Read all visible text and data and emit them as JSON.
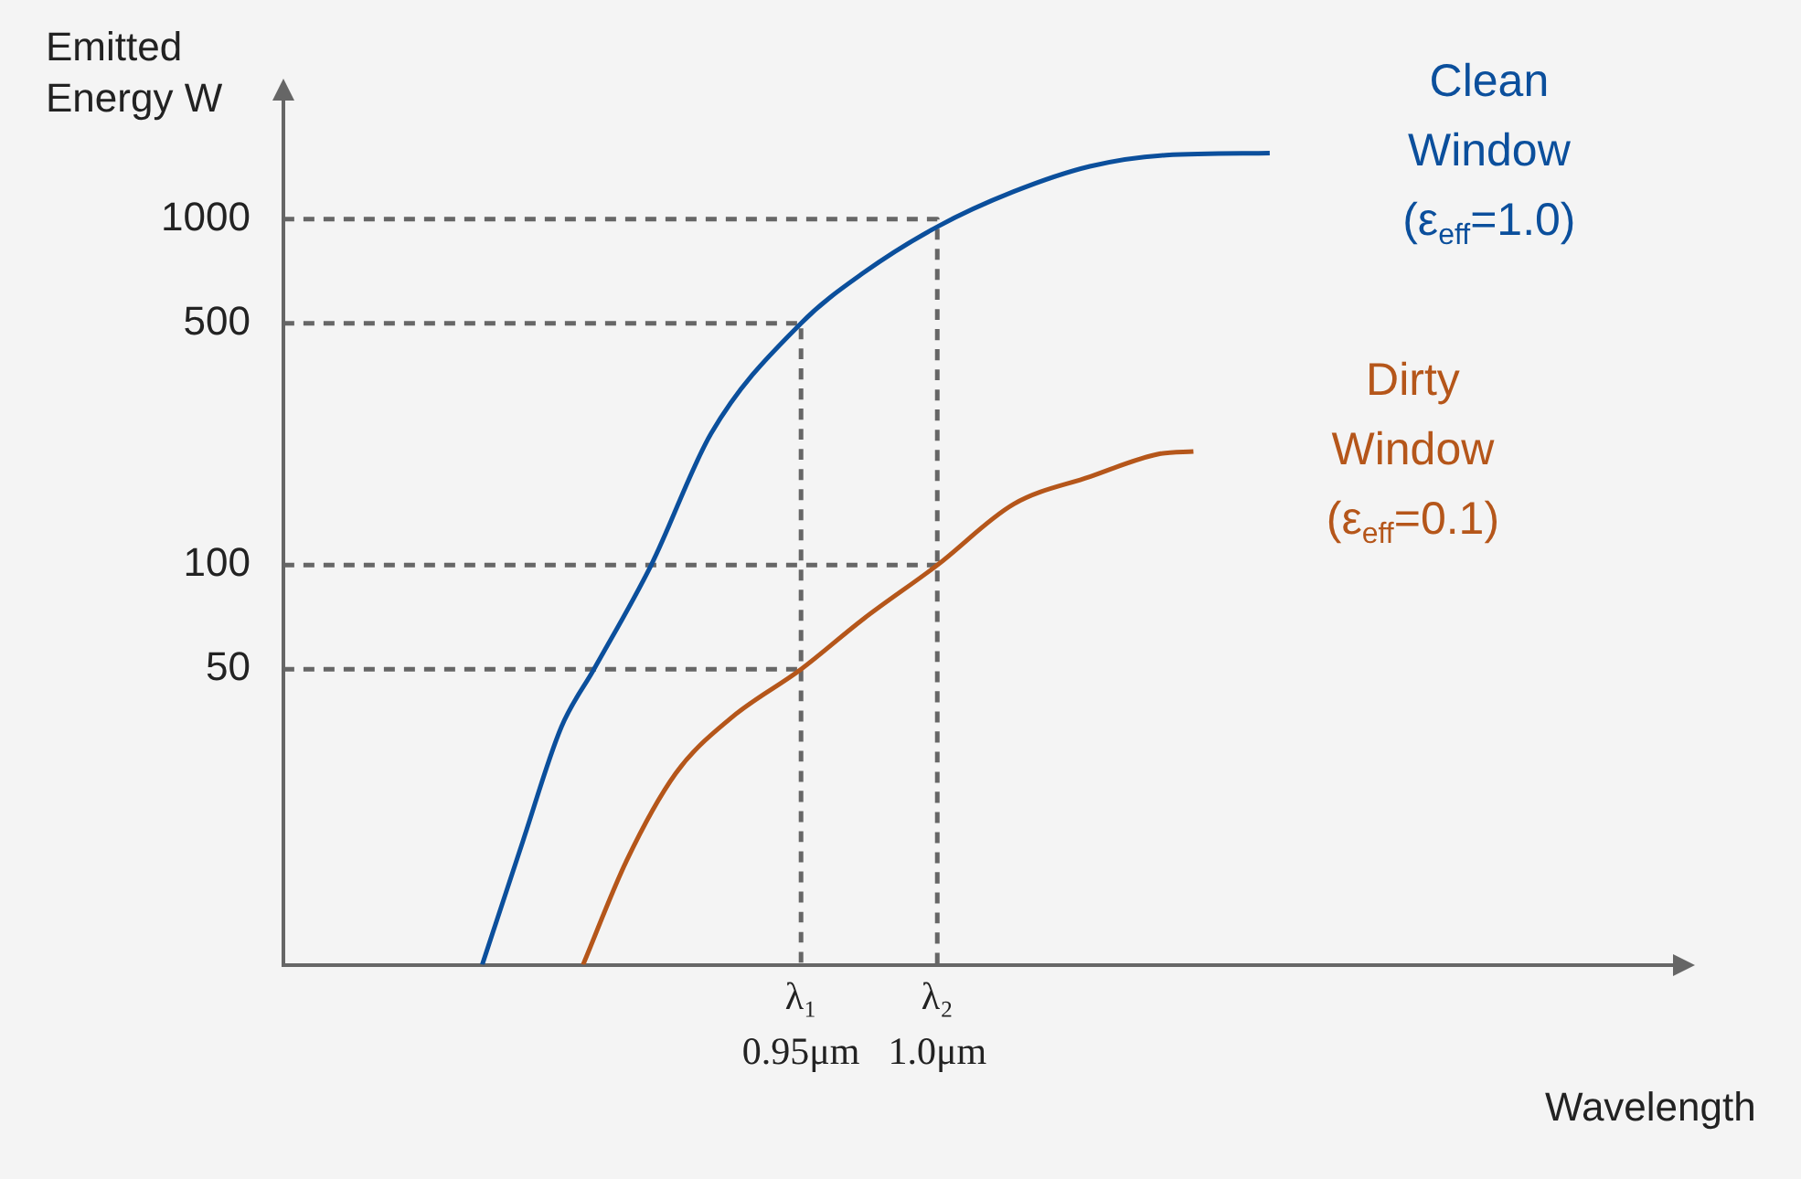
{
  "chart_data": {
    "type": "line",
    "xlabel": "Wavelength",
    "ylabel": "Emitted Energy W",
    "log": "y",
    "grid": false,
    "legend": false,
    "marker": "none",
    "xlim": [
      0.76,
      1.27
    ],
    "xticks": [
      {
        "value": 0.95,
        "label": "0.95μm"
      },
      {
        "value": 1.0,
        "label": "1.0μm"
      }
    ],
    "annotations": [
      "λ₁",
      "λ₂"
    ],
    "ylim": [
      7,
      2200
    ],
    "yticks": [
      50,
      100,
      500,
      1000
    ],
    "series": [
      {
        "name": "Clean Window (ε$_{eff}$=1.0)",
        "color": "#0b4f9c",
        "line_style": "solid",
        "x": [
          0.833,
          0.848,
          0.862,
          0.874,
          0.895,
          0.917,
          0.95,
          0.973,
          1.0,
          1.028,
          1.056,
          1.084,
          1.122
        ],
        "values": [
          7,
          16,
          34,
          50,
          100,
          240,
          500,
          700,
          950,
          1200,
          1420,
          1530,
          1550
        ]
      },
      {
        "name": "Dirty Window (ε$_{eff}$=0.1)",
        "color": "#b5561a",
        "line_style": "solid",
        "x": [
          0.87,
          0.886,
          0.904,
          0.924,
          0.95,
          0.973,
          1.0,
          1.028,
          1.056,
          1.082,
          1.094
        ],
        "values": [
          7,
          14,
          25,
          36,
          50,
          70,
          100,
          150,
          180,
          210,
          213
        ]
      },
      {
        "color": "#666666",
        "line_style": "dashed",
        "x": [
          0.76,
          0.95,
          0.95
        ],
        "values": [
          500,
          500,
          7
        ]
      },
      {
        "color": "#666666",
        "line_style": "dashed",
        "x": [
          0.76,
          0.95
        ],
        "values": [
          50,
          50
        ]
      },
      {
        "color": "#666666",
        "line_style": "dashed",
        "x": [
          0.76,
          1.0,
          1.0
        ],
        "values": [
          1000,
          1000,
          7
        ]
      },
      {
        "color": "#666666",
        "line_style": "dashed",
        "x": [
          0.76,
          1.0
        ],
        "values": [
          100,
          100
        ]
      }
    ]
  }
}
